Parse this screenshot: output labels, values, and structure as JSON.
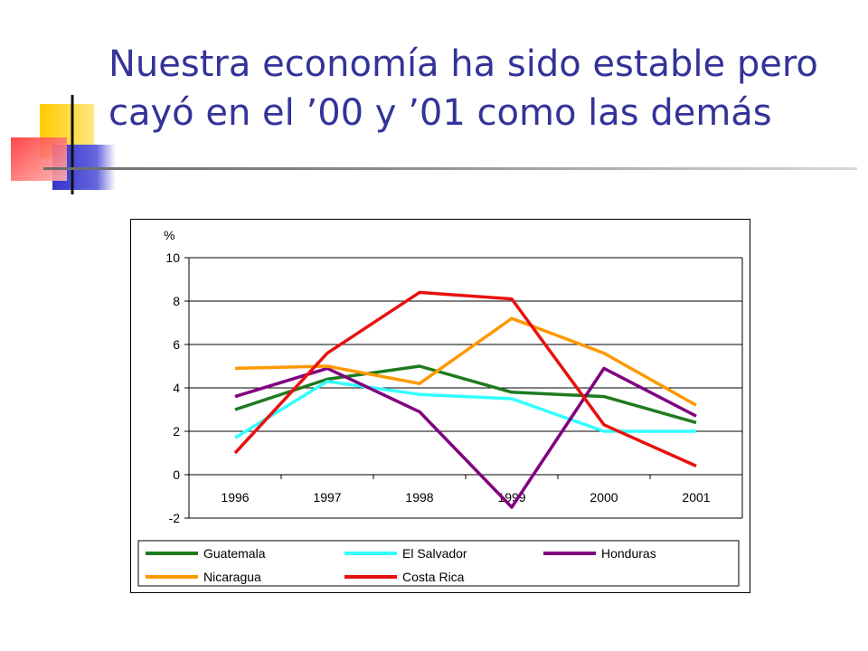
{
  "slide": {
    "title_line1": "Nuestra economía ha sido estable pero",
    "title_line2": "cayó en el ’00 y ’01 como las demás",
    "accent_colors": [
      "#FFCC00",
      "#3333CC",
      "#FF3333"
    ]
  },
  "chart_data": {
    "type": "line",
    "title": "",
    "ylabel": "%",
    "xlabel": "",
    "categories": [
      "1996",
      "1997",
      "1998",
      "1999",
      "2000",
      "2001"
    ],
    "ylim": [
      -2,
      10
    ],
    "yticks": [
      -2,
      0,
      2,
      4,
      6,
      8,
      10
    ],
    "grid": "horizontal",
    "legend": "bottom",
    "series": [
      {
        "name": "Guatemala",
        "color": "#1E7B1E",
        "values": [
          3.0,
          4.4,
          5.0,
          3.8,
          3.6,
          2.4
        ]
      },
      {
        "name": "El Salvador",
        "color": "#33FFFF",
        "values": [
          1.7,
          4.3,
          3.7,
          3.5,
          2.0,
          2.0
        ]
      },
      {
        "name": "Honduras",
        "color": "#800080",
        "values": [
          3.6,
          4.9,
          2.9,
          -1.5,
          4.9,
          2.7
        ]
      },
      {
        "name": "Nicaragua",
        "color": "#FF9900",
        "values": [
          4.9,
          5.0,
          4.2,
          7.2,
          5.6,
          3.2
        ]
      },
      {
        "name": "Costa Rica",
        "color": "#E8110F",
        "values": [
          1.0,
          5.6,
          8.4,
          8.1,
          2.3,
          0.4
        ]
      }
    ]
  }
}
